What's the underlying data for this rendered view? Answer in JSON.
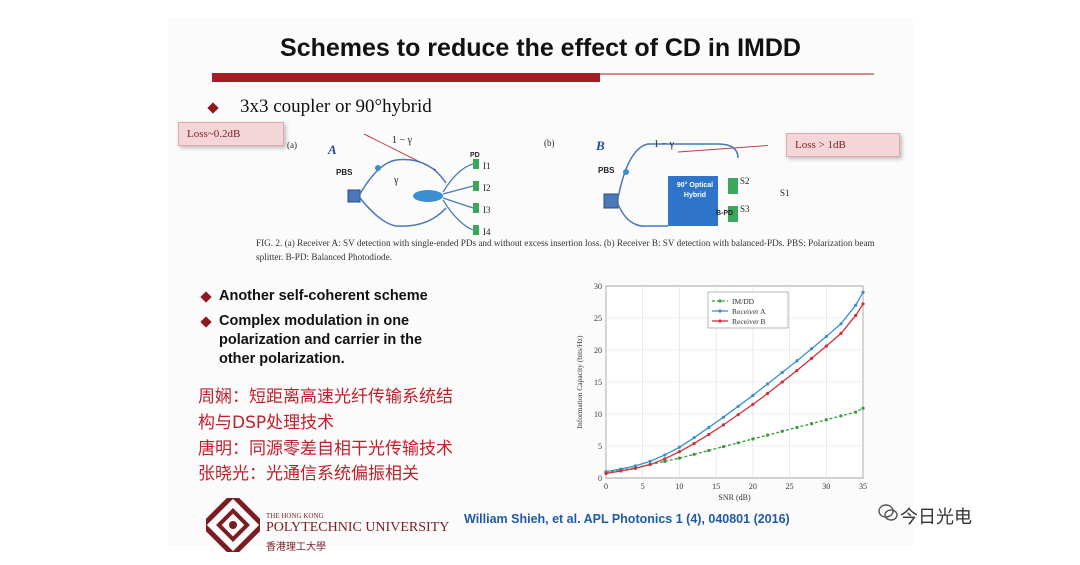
{
  "slide": {
    "title": "Schemes to reduce the effect of CD in IMDD",
    "subtitle_bullet": "3x3 coupler or 90°hybrid",
    "loss_left": "Loss~0.2dB",
    "loss_right": "Loss > 1dB",
    "figure": {
      "label_a": "(a)",
      "label_b": "(b)",
      "mark_a": "A",
      "mark_b": "B",
      "pbs": "PBS",
      "pd": "PD",
      "bpd": "B-PD",
      "hybrid": "90° Optical Hybrid",
      "one_minus_gamma": "1 − γ",
      "gamma": "γ",
      "outputs": [
        "I1",
        "I2",
        "I3",
        "I4"
      ],
      "s_outputs": [
        "S2",
        "S3",
        "S1"
      ],
      "caption": "FIG. 2.  (a) Receiver A: SV detection with single-ended PDs and without excess insertion loss. (b) Receiver B: SV detection with balanced-PDs. PBS: Polarization beam splitter. B-PD: Balanced Photodiode."
    },
    "bullets": [
      "Another self-coherent scheme",
      "Complex modulation in one polarization and carrier in the other polarization."
    ],
    "chinese_lines": [
      "周娴：短距离高速光纤传输系统结",
      "构与DSP处理技术",
      "唐明：同源零差自相干光传输技术",
      "张晓光：光通信系统偏振相关"
    ],
    "logo": {
      "line1": "THE HONG KONG",
      "line2": "POLYTECHNIC UNIVERSITY",
      "line3": "香港理工大學"
    },
    "citation": "William Shieh, et al. APL Photonics 1 (4), 040801 (2016)"
  },
  "watermark": "今日光电",
  "colors": {
    "accent_dark_red": "#a31d24",
    "chinese_text": "#c0202c",
    "citation_blue": "#1f5aa8",
    "series_imdd": "#3a9a3a",
    "series_receiver_a": "#3b8fd0",
    "series_receiver_b": "#d0303a"
  },
  "chart_data": {
    "type": "line",
    "xlabel": "SNR (dB)",
    "ylabel": "Information Capacity (bits/Hz)",
    "xlim": [
      0,
      35
    ],
    "ylim": [
      0,
      30
    ],
    "xticks": [
      0,
      5,
      10,
      15,
      20,
      25,
      30,
      35
    ],
    "yticks": [
      0,
      5,
      10,
      15,
      20,
      25,
      30
    ],
    "grid": true,
    "legend_position": "top-right",
    "x": [
      0,
      2,
      4,
      6,
      8,
      10,
      12,
      14,
      16,
      18,
      20,
      22,
      24,
      26,
      28,
      30,
      32,
      34,
      35
    ],
    "series": [
      {
        "name": "IM/DD",
        "values": [
          0.8,
          1.2,
          1.6,
          2.1,
          2.6,
          3.1,
          3.7,
          4.3,
          4.9,
          5.5,
          6.1,
          6.7,
          7.3,
          7.9,
          8.5,
          9.1,
          9.7,
          10.3,
          10.9
        ]
      },
      {
        "name": "Receiver A",
        "values": [
          1.0,
          1.4,
          1.9,
          2.6,
          3.6,
          4.8,
          6.3,
          7.9,
          9.5,
          11.2,
          12.9,
          14.7,
          16.5,
          18.3,
          20.2,
          22.1,
          24.1,
          27.0,
          29.0
        ]
      },
      {
        "name": "Receiver B",
        "values": [
          0.7,
          1.1,
          1.5,
          2.1,
          3.0,
          4.1,
          5.4,
          6.8,
          8.3,
          9.9,
          11.5,
          13.2,
          15.0,
          16.8,
          18.7,
          20.6,
          22.6,
          25.4,
          27.2
        ]
      }
    ]
  }
}
